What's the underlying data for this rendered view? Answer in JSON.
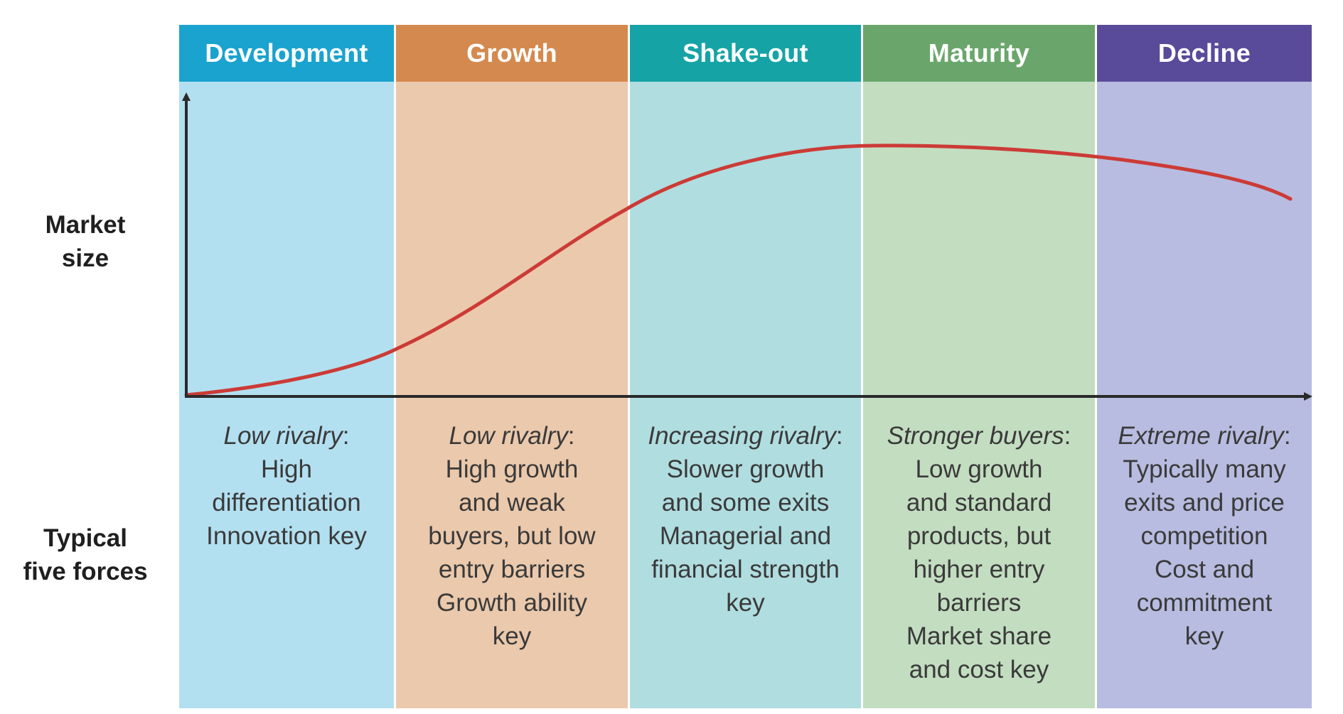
{
  "y_axis_label": [
    "Market",
    "size"
  ],
  "forces_label": [
    "Typical",
    "five forces"
  ],
  "stages": [
    {
      "name": "Development",
      "header_color": "#1aa3cf",
      "body_color": "#b3e0f0",
      "forces_lead": "Low rivalry",
      "forces_lines": [
        "High",
        "differentiation",
        "Innovation key"
      ]
    },
    {
      "name": "Growth",
      "header_color": "#d48a4e",
      "body_color": "#ebc9ac",
      "forces_lead": "Low rivalry",
      "forces_lines": [
        "High growth",
        "and weak",
        "buyers, but low",
        "entry barriers",
        "Growth ability",
        "key"
      ]
    },
    {
      "name": "Shake-out",
      "header_color": "#16a3a6",
      "body_color": "#b0dde0",
      "forces_lead": "Increasing rivalry",
      "forces_lines": [
        "Slower growth",
        "and some exits",
        "Managerial and",
        "financial strength",
        "key"
      ]
    },
    {
      "name": "Maturity",
      "header_color": "#6aa66b",
      "body_color": "#c3ddc1",
      "forces_lead": "Stronger buyers",
      "forces_lines": [
        "Low growth",
        "and standard",
        "products, but",
        "higher entry",
        "barriers",
        "Market share",
        "and cost key"
      ]
    },
    {
      "name": "Decline",
      "header_color": "#5a4a9a",
      "body_color": "#b8bce0",
      "forces_lead": "Extreme rivalry",
      "forces_lines": [
        "Typically many",
        "exits and price",
        "competition",
        "Cost and",
        "commitment",
        "key"
      ]
    }
  ],
  "curve_color": "#cc3b36",
  "axis_color": "#2a2a2a"
}
